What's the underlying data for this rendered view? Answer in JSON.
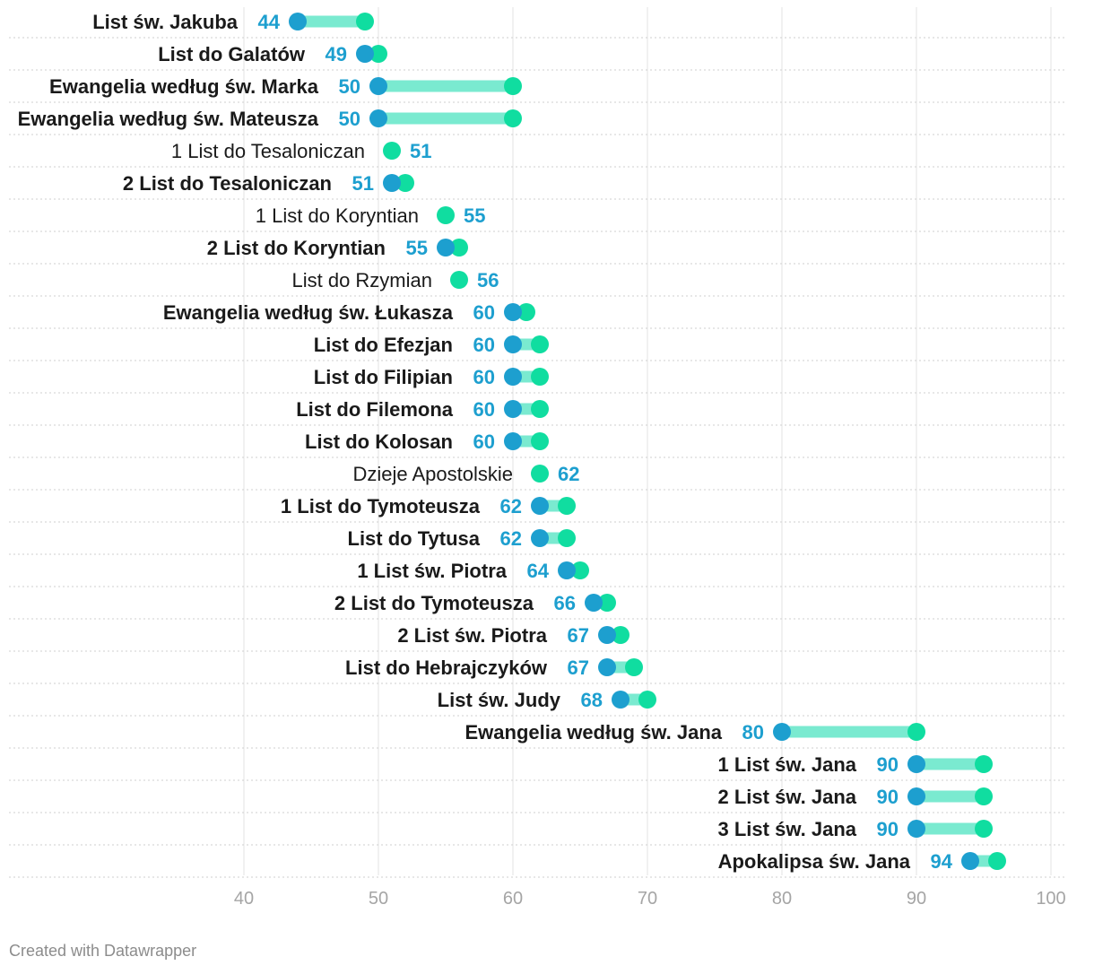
{
  "chart_data": {
    "type": "dot-range",
    "xlim": [
      40,
      100
    ],
    "x_ticks": [
      40,
      50,
      60,
      70,
      80,
      90,
      100
    ],
    "grid": true,
    "colors": {
      "start": "#1d9fcf",
      "end": "#10dda0",
      "bar": "#7aead0"
    },
    "rows": [
      {
        "label": "List św. Jakuba",
        "start": 44,
        "end": 49,
        "start_label": "44",
        "bold": true
      },
      {
        "label": "List do Galatów",
        "start": 49,
        "end": 50,
        "start_label": "49",
        "bold": true
      },
      {
        "label": "Ewangelia według św. Marka",
        "start": 50,
        "end": 60,
        "start_label": "50",
        "bold": true
      },
      {
        "label": "Ewangelia według św. Mateusza",
        "start": 50,
        "end": 60,
        "start_label": "50",
        "bold": true
      },
      {
        "label": "1 List do Tesaloniczan",
        "start": 51,
        "end": 51,
        "start_label": "51",
        "bold": false
      },
      {
        "label": "2 List do Tesaloniczan",
        "start": 51,
        "end": 52,
        "start_label": "51",
        "bold": true
      },
      {
        "label": "1 List do Koryntian",
        "start": 55,
        "end": 55,
        "start_label": "55",
        "bold": false
      },
      {
        "label": "2 List do Koryntian",
        "start": 55,
        "end": 56,
        "start_label": "55",
        "bold": true
      },
      {
        "label": "List do Rzymian",
        "start": 56,
        "end": 56,
        "start_label": "56",
        "bold": false
      },
      {
        "label": "Ewangelia według św. Łukasza",
        "start": 60,
        "end": 61,
        "start_label": "60",
        "bold": true
      },
      {
        "label": "List do Efezjan",
        "start": 60,
        "end": 62,
        "start_label": "60",
        "bold": true
      },
      {
        "label": "List do Filipian",
        "start": 60,
        "end": 62,
        "start_label": "60",
        "bold": true
      },
      {
        "label": "List do Filemona",
        "start": 60,
        "end": 62,
        "start_label": "60",
        "bold": true
      },
      {
        "label": "List do Kolosan",
        "start": 60,
        "end": 62,
        "start_label": "60",
        "bold": true
      },
      {
        "label": "Dzieje Apostolskie",
        "start": 62,
        "end": 62,
        "start_label": "62",
        "bold": false
      },
      {
        "label": "1 List do Tymoteusza",
        "start": 62,
        "end": 64,
        "start_label": "62",
        "bold": true
      },
      {
        "label": "List do Tytusa",
        "start": 62,
        "end": 64,
        "start_label": "62",
        "bold": true
      },
      {
        "label": "1 List św. Piotra",
        "start": 64,
        "end": 65,
        "start_label": "64",
        "bold": true
      },
      {
        "label": "2 List do Tymoteusza",
        "start": 66,
        "end": 67,
        "start_label": "66",
        "bold": true
      },
      {
        "label": "2 List św. Piotra",
        "start": 67,
        "end": 68,
        "start_label": "67",
        "bold": true
      },
      {
        "label": "List do Hebrajczyków",
        "start": 67,
        "end": 69,
        "start_label": "67",
        "bold": true
      },
      {
        "label": "List św. Judy",
        "start": 68,
        "end": 70,
        "start_label": "68",
        "bold": true
      },
      {
        "label": "Ewangelia według św. Jana",
        "start": 80,
        "end": 90,
        "start_label": "80",
        "bold": true
      },
      {
        "label": "1 List św. Jana",
        "start": 90,
        "end": 95,
        "start_label": "90",
        "bold": true
      },
      {
        "label": "2 List św. Jana",
        "start": 90,
        "end": 95,
        "start_label": "90",
        "bold": true
      },
      {
        "label": "3 List św. Jana",
        "start": 90,
        "end": 95,
        "start_label": "90",
        "bold": true
      },
      {
        "label": "Apokalipsa św. Jana",
        "start": 94,
        "end": 96,
        "start_label": "94",
        "bold": true
      }
    ]
  },
  "footer": {
    "credit": "Created with Datawrapper"
  }
}
